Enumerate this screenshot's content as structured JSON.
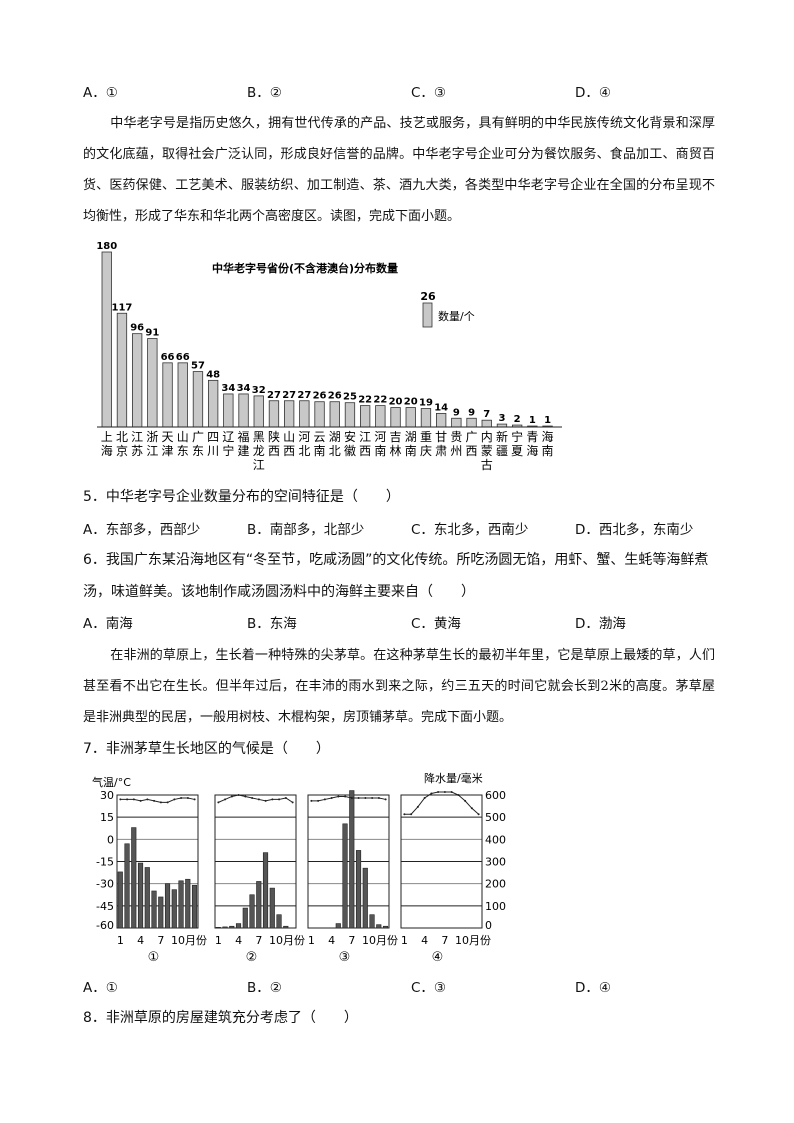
{
  "prev_options": [
    "A．①",
    "B．②",
    "C．③",
    "D．④"
  ],
  "passage1": "中华老字号是指历史悠久，拥有世代传承的产品、技艺或服务，具有鲜明的中华民族传统文化背景和深厚的文化底蕴，取得社会广泛认同，形成良好信誉的品牌。中华老字号企业可分为餐饮服务、食品加工、商贸百货、医药保健、工艺美术、服装纺织、加工制造、茶、酒九大类，各类型中华老字号企业在全国的分布呈现不均衡性，形成了华东和华北两个高密度区。读图，完成下面小题。",
  "q5": {
    "text": "5．中华老字号企业数量分布的空间特征是（　　）",
    "options": [
      "A．东部多，西部少",
      "B．南部多，北部少",
      "C．东北多，西南少",
      "D．西北多，东南少"
    ]
  },
  "q6": {
    "text": "6．我国广东某沿海地区有“冬至节，吃咸汤圆”的文化传统。所吃汤圆无馅，用虾、蟹、生蚝等海鲜煮汤，味道鲜美。该地制作咸汤圆汤料中的海鲜主要来自（　　）",
    "options": [
      "A．南海",
      "B．东海",
      "C．黄海",
      "D．渤海"
    ]
  },
  "passage2": "在非洲的草原上，生长着一种特殊的尖茅草。在这种茅草生长的最初半年里，它是草原上最矮的草，人们甚至看不出它在生长。但半年过后，在丰沛的雨水到来之际，约三五天的时间它就会长到2米的高度。茅草屋是非洲典型的民居，一般用树枝、木棍构架，房顶铺茅草。完成下面小题。",
  "q7": {
    "text": "7．非洲茅草生长地区的气候是（　　）",
    "options": [
      "A．①",
      "B．②",
      "C．③",
      "D．④"
    ]
  },
  "q8": {
    "text": "8．非洲草原的房屋建筑充分考虑了（　　）"
  },
  "chart_data": [
    {
      "type": "bar",
      "title": "中华老字号省份(不含港澳台)分布数量",
      "legend": {
        "label": "数量/个",
        "sample_value": "26",
        "placement": "top-right"
      },
      "categories": [
        "上海",
        "北京",
        "江苏",
        "浙江",
        "天津",
        "山东",
        "广东",
        "四川",
        "辽宁",
        "福建",
        "黑龙江",
        "陕西",
        "山西",
        "河北",
        "云南",
        "湖北",
        "安徽",
        "江西",
        "河南",
        "吉林",
        "湖南",
        "重庆",
        "甘肃",
        "贵州",
        "广西",
        "内蒙古",
        "新疆",
        "宁夏",
        "青海",
        "海南"
      ],
      "values": [
        180,
        117,
        96,
        91,
        66,
        66,
        57,
        48,
        34,
        34,
        32,
        27,
        27,
        27,
        26,
        26,
        25,
        22,
        22,
        20,
        20,
        19,
        14,
        9,
        9,
        7,
        3,
        2,
        1,
        1
      ],
      "bar_color": "#c8c8c8"
    },
    {
      "type": "climate",
      "ylabel_left": "气温/°C",
      "ylabel_right": "降水量/毫米",
      "ylim_temp": [
        -60,
        30
      ],
      "yticks_temp": [
        "30",
        "15",
        "0",
        "-15",
        "-30",
        "-45",
        "-60"
      ],
      "ylim_precip": [
        0,
        600
      ],
      "yticks_precip": [
        "600",
        "500",
        "400",
        "300",
        "200",
        "100",
        "0"
      ],
      "xticks": [
        "1",
        "4",
        "7",
        "10月份"
      ],
      "panels": [
        {
          "label": "①",
          "temp": [
            27,
            27,
            27,
            26,
            27,
            26,
            25,
            25,
            27,
            28,
            28,
            27
          ],
          "precip": [
            253,
            380,
            453,
            293,
            273,
            167,
            140,
            200,
            173,
            213,
            220,
            193
          ]
        },
        {
          "label": "②",
          "temp": [
            25,
            27,
            29,
            30,
            29,
            28,
            27,
            26,
            27,
            27,
            28,
            25
          ],
          "precip": [
            3,
            5,
            8,
            20,
            90,
            150,
            210,
            340,
            180,
            60,
            8,
            0
          ]
        },
        {
          "label": "③",
          "temp": [
            26,
            26,
            27,
            28,
            29,
            29,
            28,
            28,
            28,
            28,
            28,
            27
          ],
          "precip": [
            0,
            0,
            0,
            0,
            20,
            470,
            620,
            350,
            270,
            60,
            15,
            8
          ]
        },
        {
          "label": "④",
          "temp": [
            17,
            17,
            22,
            28,
            31,
            32,
            32,
            32,
            30,
            26,
            21,
            17
          ],
          "precip": [
            0,
            0,
            0,
            0,
            0,
            0,
            0,
            0,
            0,
            0,
            0,
            0
          ]
        }
      ]
    }
  ]
}
